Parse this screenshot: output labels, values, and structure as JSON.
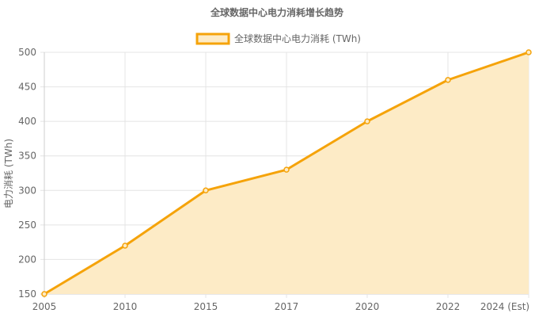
{
  "chart_data": {
    "type": "area",
    "title": "全球数据中心电力消耗增长趋势",
    "ylabel": "电力消耗 (TWh)",
    "xlabel": "",
    "categories": [
      "2005",
      "2010",
      "2015",
      "2017",
      "2020",
      "2022",
      "2024 (Est)"
    ],
    "series": [
      {
        "name": "全球数据中心电力消耗 (TWh)",
        "values": [
          150,
          220,
          300,
          330,
          400,
          460,
          500
        ],
        "color": "#f5a30a",
        "fill": "#fdebc6"
      }
    ],
    "ylim": [
      150,
      500
    ],
    "yticks": [
      150,
      200,
      250,
      300,
      350,
      400,
      450,
      500
    ],
    "grid": true,
    "legend": "top-center"
  }
}
